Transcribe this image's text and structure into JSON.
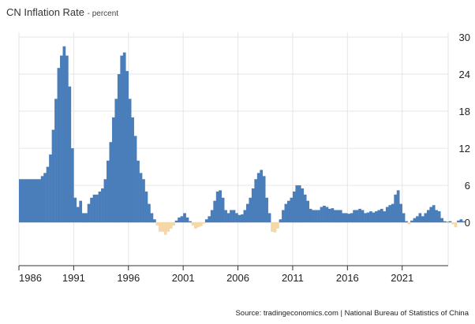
{
  "title": "CN Inflation Rate",
  "subtitle": "- percent",
  "source": "Source: tradingeconomics.com | National Bureau of Statistics of China",
  "colors": {
    "positive": "#4a7ebb",
    "negative": "#f5d8a6",
    "grid": "#e6e6e6",
    "axis": "#333333"
  },
  "chart_data": {
    "type": "bar",
    "title": "CN Inflation Rate",
    "ylabel": "percent",
    "xlabel": "",
    "ylim": [
      -7,
      30
    ],
    "yticks": [
      0,
      6,
      12,
      18,
      24,
      30
    ],
    "xlim": [
      1986.0,
      2025.2
    ],
    "xticks": [
      1986,
      1991,
      1996,
      2001,
      2006,
      2011,
      2016,
      2021
    ],
    "grid": true,
    "series": [
      {
        "name": "CN Inflation Rate",
        "x_start": 1986.0,
        "step": 0.25,
        "values": [
          7.0,
          7.0,
          7.0,
          7.0,
          7.0,
          7.0,
          7.0,
          7.0,
          7.5,
          8.0,
          9.0,
          11.0,
          15.0,
          20.0,
          25.0,
          27.0,
          28.5,
          27.0,
          22.0,
          12.0,
          4.0,
          2.5,
          3.5,
          1.5,
          1.5,
          3.0,
          4.0,
          4.5,
          4.5,
          5.0,
          5.5,
          7.0,
          10.0,
          13.0,
          17.0,
          20.0,
          24.0,
          27.0,
          27.5,
          24.5,
          20.0,
          17.0,
          14.0,
          10.0,
          8.0,
          7.0,
          5.0,
          3.0,
          1.5,
          0.5,
          -0.5,
          -1.5,
          -1.5,
          -2.0,
          -1.5,
          -1.0,
          -0.5,
          0.3,
          0.8,
          1.0,
          1.5,
          0.8,
          0.2,
          -0.5,
          -1.0,
          -0.8,
          -0.6,
          -0.2,
          0.5,
          1.0,
          2.0,
          3.5,
          5.0,
          5.2,
          4.0,
          2.0,
          1.5,
          2.0,
          2.0,
          1.5,
          1.2,
          1.3,
          2.0,
          3.0,
          4.0,
          5.5,
          7.0,
          8.0,
          8.5,
          7.5,
          4.0,
          1.5,
          -1.5,
          -1.6,
          -1.0,
          0.5,
          2.0,
          3.0,
          3.5,
          4.0,
          5.0,
          6.0,
          6.0,
          5.5,
          4.5,
          3.5,
          2.2,
          2.0,
          2.0,
          2.0,
          2.5,
          2.7,
          2.5,
          2.2,
          2.3,
          2.0,
          2.0,
          2.0,
          1.5,
          1.5,
          1.4,
          1.5,
          2.0,
          2.0,
          2.2,
          2.0,
          1.5,
          1.6,
          1.8,
          1.6,
          1.8,
          2.0,
          2.2,
          1.8,
          2.5,
          2.8,
          3.0,
          4.5,
          5.2,
          3.0,
          1.5,
          0.2,
          -0.3,
          0.3,
          0.7,
          1.0,
          1.5,
          1.0,
          1.5,
          2.0,
          2.5,
          2.8,
          2.0,
          1.8,
          0.7,
          0.2,
          0.1,
          0.2,
          -0.3,
          -0.8,
          0.3,
          0.5,
          0.2
        ]
      }
    ]
  }
}
